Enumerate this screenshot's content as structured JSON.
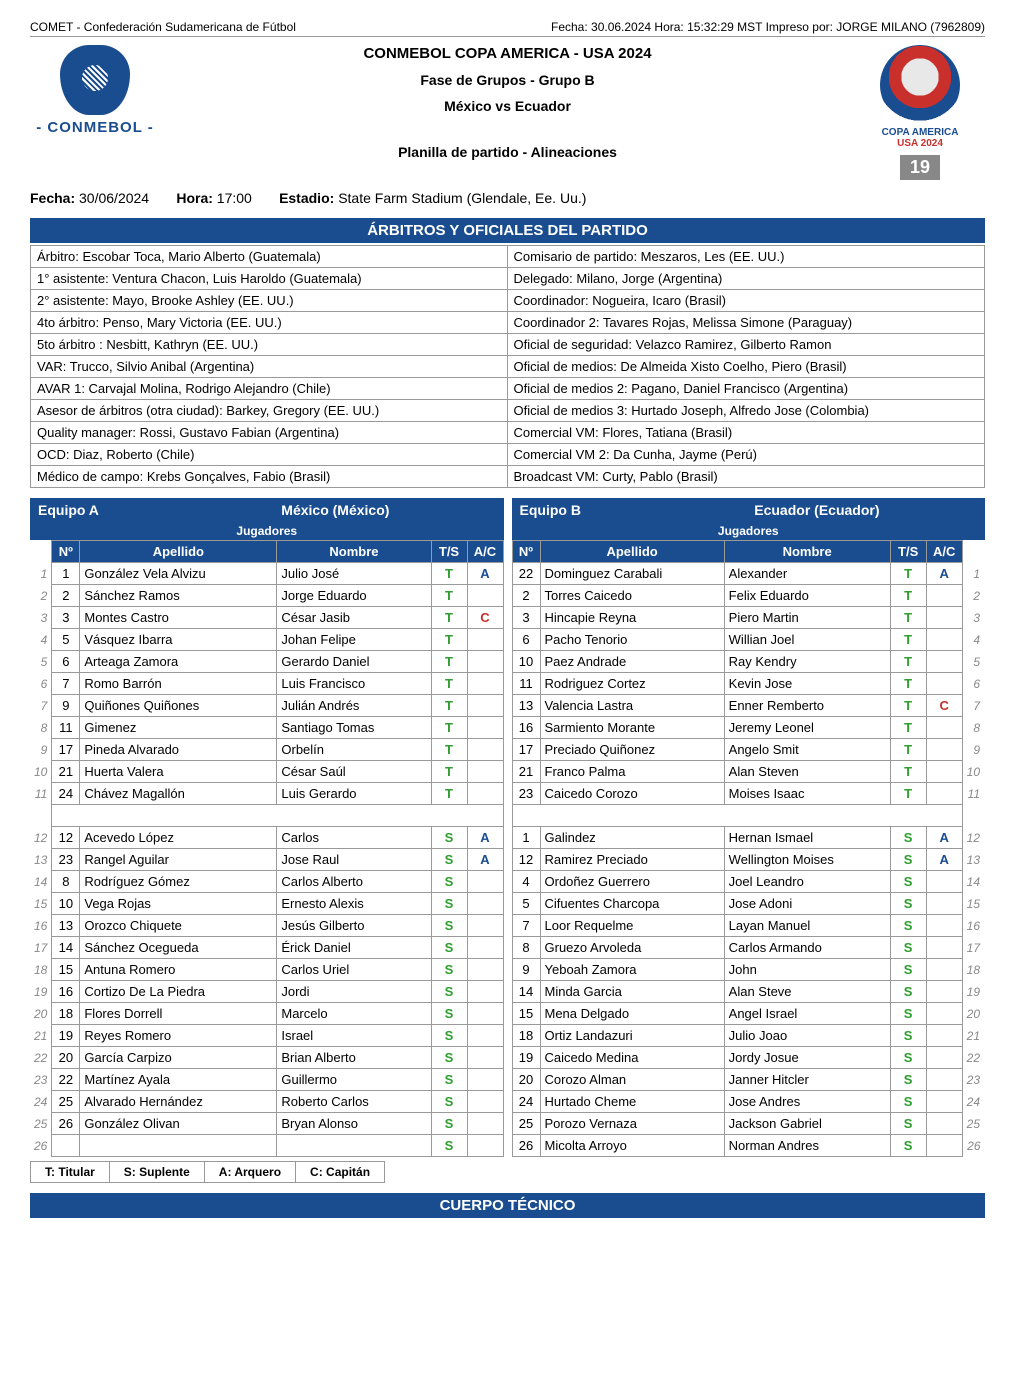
{
  "topbar": {
    "left": "COMET - Confederación Sudamericana de Fútbol",
    "right": "Fecha: 30.06.2024   Hora: 15:32:29 MST    Impreso por: JORGE MILANO (7962809)"
  },
  "header": {
    "conmebol": "- CONMEBOL -",
    "t1": "CONMEBOL COPA AMERICA - USA 2024",
    "t2": "Fase de Grupos - Grupo B",
    "t3": "México  vs  Ecuador",
    "t4": "Planilla de partido - Alineaciones",
    "copa1": "COPA AMERICA",
    "copa2": "USA 2024",
    "match_num": "19"
  },
  "info": {
    "fecha_label": "Fecha:",
    "fecha": "30/06/2024",
    "hora_label": "Hora:",
    "hora": "17:00",
    "estadio_label": "Estadio:",
    "estadio": "State Farm Stadium (Glendale, Ee. Uu.)"
  },
  "section_officials": "ÁRBITROS Y OFICIALES DEL PARTIDO",
  "officials_left": [
    "Árbitro: Escobar Toca, Mario Alberto (Guatemala)",
    "1° asistente: Ventura Chacon, Luis Haroldo (Guatemala)",
    "2° asistente: Mayo, Brooke Ashley (EE. UU.)",
    "4to árbitro: Penso, Mary Victoria (EE. UU.)",
    "5to árbitro : Nesbitt, Kathryn (EE. UU.)",
    "VAR: Trucco, Silvio Anibal (Argentina)",
    "AVAR 1: Carvajal Molina, Rodrigo Alejandro (Chile)",
    "Asesor de árbitros (otra ciudad): Barkey, Gregory (EE. UU.)",
    "Quality manager: Rossi, Gustavo Fabian (Argentina)",
    "OCD: Diaz, Roberto (Chile)",
    "Médico de campo: Krebs Gonçalves, Fabio (Brasil)"
  ],
  "officials_right": [
    "Comisario de partido: Meszaros, Les (EE. UU.)",
    "Delegado: Milano, Jorge (Argentina)",
    "Coordinador: Nogueira, Icaro (Brasil)",
    "Coordinador 2: Tavares Rojas, Melissa Simone (Paraguay)",
    "Oficial de seguridad: Velazco Ramirez, Gilberto Ramon",
    "Oficial de medios: De Almeida Xisto Coelho, Piero (Brasil)",
    "Oficial de medios 2: Pagano, Daniel Francisco (Argentina)",
    "Oficial de medios 3: Hurtado Joseph, Alfredo Jose (Colombia)",
    "Comercial VM: Flores, Tatiana (Brasil)",
    "Comercial VM 2: Da Cunha, Jayme (Perú)",
    "Broadcast VM: Curty, Pablo (Brasil)"
  ],
  "teamA": {
    "label": "Equipo A",
    "name": "México (México)",
    "jugadores": "Jugadores",
    "cols": {
      "no": "Nº",
      "apellido": "Apellido",
      "nombre": "Nombre",
      "ts": "T/S",
      "ac": "A/C"
    },
    "starters": [
      {
        "n": "1",
        "ap": "González Vela Alvizu",
        "nm": "Julio José",
        "ts": "T",
        "ac": "A"
      },
      {
        "n": "2",
        "ap": "Sánchez Ramos",
        "nm": "Jorge Eduardo",
        "ts": "T",
        "ac": ""
      },
      {
        "n": "3",
        "ap": "Montes Castro",
        "nm": "César Jasib",
        "ts": "T",
        "ac": "C"
      },
      {
        "n": "5",
        "ap": "Vásquez Ibarra",
        "nm": "Johan Felipe",
        "ts": "T",
        "ac": ""
      },
      {
        "n": "6",
        "ap": "Arteaga Zamora",
        "nm": "Gerardo Daniel",
        "ts": "T",
        "ac": ""
      },
      {
        "n": "7",
        "ap": "Romo Barrón",
        "nm": "Luis Francisco",
        "ts": "T",
        "ac": ""
      },
      {
        "n": "9",
        "ap": "Quiñones Quiñones",
        "nm": "Julián Andrés",
        "ts": "T",
        "ac": ""
      },
      {
        "n": "11",
        "ap": "Gimenez",
        "nm": "Santiago Tomas",
        "ts": "T",
        "ac": ""
      },
      {
        "n": "17",
        "ap": "Pineda Alvarado",
        "nm": "Orbelín",
        "ts": "T",
        "ac": ""
      },
      {
        "n": "21",
        "ap": "Huerta Valera",
        "nm": "César Saúl",
        "ts": "T",
        "ac": ""
      },
      {
        "n": "24",
        "ap": "Chávez Magallón",
        "nm": "Luis Gerardo",
        "ts": "T",
        "ac": ""
      }
    ],
    "subs": [
      {
        "n": "12",
        "ap": "Acevedo López",
        "nm": "Carlos",
        "ts": "S",
        "ac": "A"
      },
      {
        "n": "23",
        "ap": "Rangel Aguilar",
        "nm": "Jose Raul",
        "ts": "S",
        "ac": "A"
      },
      {
        "n": "8",
        "ap": "Rodríguez Gómez",
        "nm": "Carlos Alberto",
        "ts": "S",
        "ac": ""
      },
      {
        "n": "10",
        "ap": "Vega Rojas",
        "nm": "Ernesto Alexis",
        "ts": "S",
        "ac": ""
      },
      {
        "n": "13",
        "ap": "Orozco Chiquete",
        "nm": "Jesús Gilberto",
        "ts": "S",
        "ac": ""
      },
      {
        "n": "14",
        "ap": "Sánchez Ocegueda",
        "nm": "Érick Daniel",
        "ts": "S",
        "ac": ""
      },
      {
        "n": "15",
        "ap": "Antuna Romero",
        "nm": "Carlos Uriel",
        "ts": "S",
        "ac": ""
      },
      {
        "n": "16",
        "ap": "Cortizo De La Piedra",
        "nm": "Jordi",
        "ts": "S",
        "ac": ""
      },
      {
        "n": "18",
        "ap": "Flores Dorrell",
        "nm": "Marcelo",
        "ts": "S",
        "ac": ""
      },
      {
        "n": "19",
        "ap": "Reyes Romero",
        "nm": "Israel",
        "ts": "S",
        "ac": ""
      },
      {
        "n": "20",
        "ap": "García Carpizo",
        "nm": "Brian Alberto",
        "ts": "S",
        "ac": ""
      },
      {
        "n": "22",
        "ap": "Martínez Ayala",
        "nm": "Guillermo",
        "ts": "S",
        "ac": ""
      },
      {
        "n": "25",
        "ap": "Alvarado Hernández",
        "nm": "Roberto Carlos",
        "ts": "S",
        "ac": ""
      },
      {
        "n": "26",
        "ap": "González Olivan",
        "nm": "Bryan Alonso",
        "ts": "S",
        "ac": ""
      },
      {
        "n": "",
        "ap": "",
        "nm": "",
        "ts": "S",
        "ac": ""
      }
    ]
  },
  "teamB": {
    "label": "Equipo B",
    "name": "Ecuador (Ecuador)",
    "jugadores": "Jugadores",
    "cols": {
      "no": "Nº",
      "apellido": "Apellido",
      "nombre": "Nombre",
      "ts": "T/S",
      "ac": "A/C"
    },
    "starters": [
      {
        "n": "22",
        "ap": "Dominguez Carabali",
        "nm": "Alexander",
        "ts": "T",
        "ac": "A"
      },
      {
        "n": "2",
        "ap": "Torres Caicedo",
        "nm": "Felix Eduardo",
        "ts": "T",
        "ac": ""
      },
      {
        "n": "3",
        "ap": "Hincapie Reyna",
        "nm": "Piero Martin",
        "ts": "T",
        "ac": ""
      },
      {
        "n": "6",
        "ap": "Pacho Tenorio",
        "nm": "Willian Joel",
        "ts": "T",
        "ac": ""
      },
      {
        "n": "10",
        "ap": "Paez Andrade",
        "nm": "Ray Kendry",
        "ts": "T",
        "ac": ""
      },
      {
        "n": "11",
        "ap": "Rodriguez Cortez",
        "nm": "Kevin Jose",
        "ts": "T",
        "ac": ""
      },
      {
        "n": "13",
        "ap": "Valencia Lastra",
        "nm": "Enner Remberto",
        "ts": "T",
        "ac": "C"
      },
      {
        "n": "16",
        "ap": "Sarmiento Morante",
        "nm": "Jeremy Leonel",
        "ts": "T",
        "ac": ""
      },
      {
        "n": "17",
        "ap": "Preciado Quiñonez",
        "nm": "Angelo Smit",
        "ts": "T",
        "ac": ""
      },
      {
        "n": "21",
        "ap": "Franco Palma",
        "nm": "Alan Steven",
        "ts": "T",
        "ac": ""
      },
      {
        "n": "23",
        "ap": "Caicedo Corozo",
        "nm": "Moises Isaac",
        "ts": "T",
        "ac": ""
      }
    ],
    "subs": [
      {
        "n": "1",
        "ap": "Galindez",
        "nm": "Hernan Ismael",
        "ts": "S",
        "ac": "A"
      },
      {
        "n": "12",
        "ap": "Ramirez Preciado",
        "nm": "Wellington Moises",
        "ts": "S",
        "ac": "A"
      },
      {
        "n": "4",
        "ap": "Ordoñez Guerrero",
        "nm": "Joel Leandro",
        "ts": "S",
        "ac": ""
      },
      {
        "n": "5",
        "ap": "Cifuentes Charcopa",
        "nm": "Jose Adoni",
        "ts": "S",
        "ac": ""
      },
      {
        "n": "7",
        "ap": "Loor Requelme",
        "nm": "Layan Manuel",
        "ts": "S",
        "ac": ""
      },
      {
        "n": "8",
        "ap": "Gruezo Arvoleda",
        "nm": "Carlos Armando",
        "ts": "S",
        "ac": ""
      },
      {
        "n": "9",
        "ap": "Yeboah Zamora",
        "nm": "John",
        "ts": "S",
        "ac": ""
      },
      {
        "n": "14",
        "ap": "Minda Garcia",
        "nm": "Alan Steve",
        "ts": "S",
        "ac": ""
      },
      {
        "n": "15",
        "ap": "Mena Delgado",
        "nm": "Angel Israel",
        "ts": "S",
        "ac": ""
      },
      {
        "n": "18",
        "ap": "Ortiz Landazuri",
        "nm": "Julio Joao",
        "ts": "S",
        "ac": ""
      },
      {
        "n": "19",
        "ap": "Caicedo Medina",
        "nm": "Jordy Josue",
        "ts": "S",
        "ac": ""
      },
      {
        "n": "20",
        "ap": "Corozo Alman",
        "nm": "Janner Hitcler",
        "ts": "S",
        "ac": ""
      },
      {
        "n": "24",
        "ap": "Hurtado Cheme",
        "nm": "Jose Andres",
        "ts": "S",
        "ac": ""
      },
      {
        "n": "25",
        "ap": "Porozo Vernaza",
        "nm": "Jackson Gabriel",
        "ts": "S",
        "ac": ""
      },
      {
        "n": "26",
        "ap": "Micolta Arroyo",
        "nm": "Norman Andres",
        "ts": "S",
        "ac": ""
      }
    ]
  },
  "legend": {
    "t": "T: Titular",
    "s": "S: Suplente",
    "a": "A: Arquero",
    "c": "C: Capitán"
  },
  "footer": "CUERPO TÉCNICO"
}
